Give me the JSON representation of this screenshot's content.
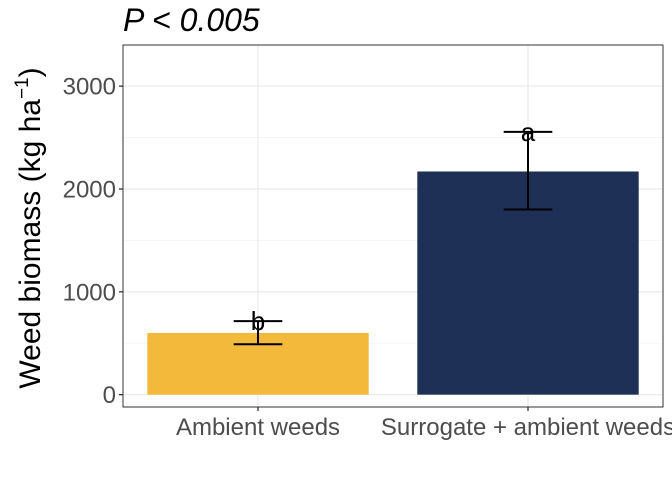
{
  "chart_data": {
    "type": "bar",
    "title": "P < 0.005",
    "ylabel_main": "Weed biomass (kg ha",
    "ylabel_sup": "−1",
    "ylabel_close": ")",
    "xlabel": "",
    "categories": [
      "Ambient weeds",
      "Surrogate + ambient weeds"
    ],
    "values": [
      600,
      2170
    ],
    "error_low": [
      490,
      1800
    ],
    "error_high": [
      715,
      2555
    ],
    "significance_letters": [
      "b",
      "a"
    ],
    "colors": [
      "#F2B93B",
      "#1F3056"
    ],
    "ylim": [
      -120,
      3400
    ],
    "yticks": [
      0,
      1000,
      2000,
      3000
    ],
    "ytick_labels": [
      "0",
      "1000",
      "2000",
      "3000"
    ],
    "grid": true,
    "legend": "none"
  }
}
